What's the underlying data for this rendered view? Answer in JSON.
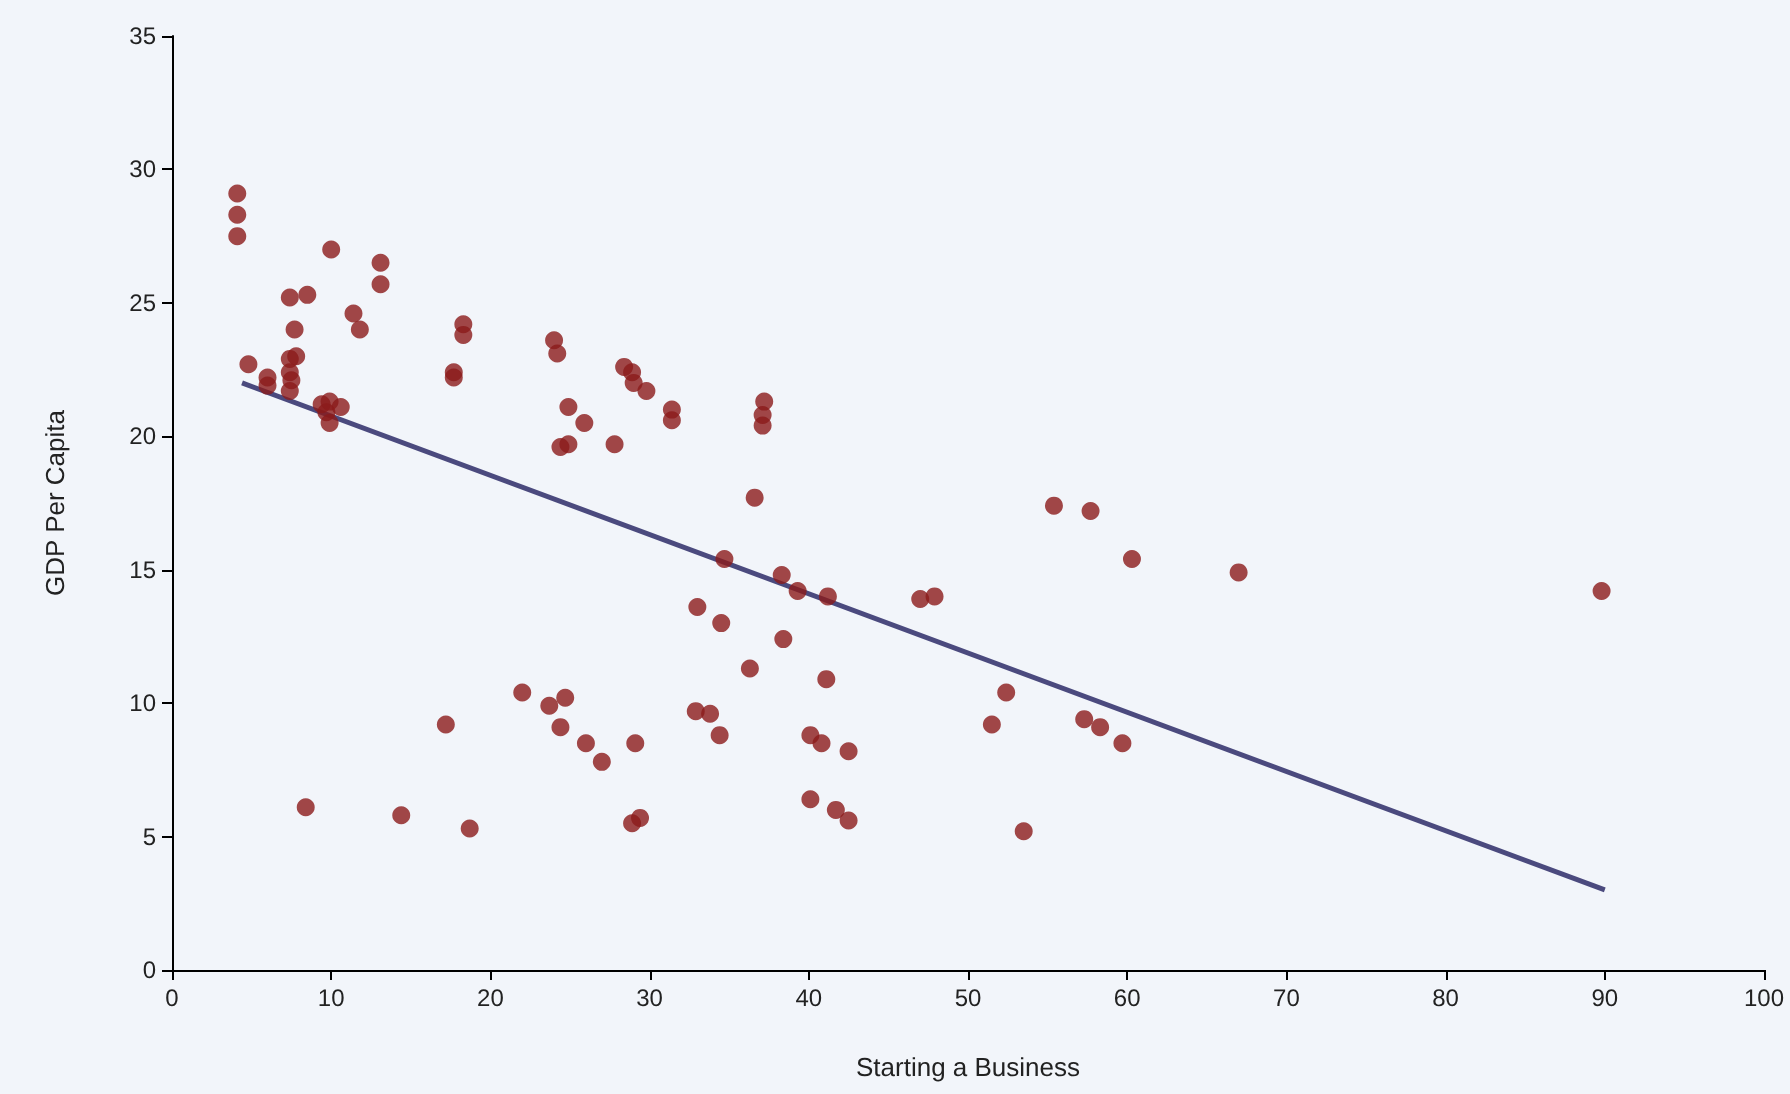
{
  "chart_data": {
    "type": "scatter",
    "xlabel": "Starting a Business",
    "ylabel": "GDP Per Capita",
    "xlim": [
      0,
      100
    ],
    "xticks": [
      0,
      10,
      20,
      30,
      40,
      50,
      60,
      70,
      80,
      90,
      100
    ],
    "ylim": [
      0,
      35
    ],
    "yticks": [
      0,
      5,
      10,
      15,
      20,
      25,
      30,
      35
    ],
    "grid": false,
    "marker": "circle",
    "series": [
      {
        "color": "#8b1a1a",
        "x": [
          4.1,
          4.1,
          4.1,
          4.8,
          6.0,
          6.0,
          7.4,
          7.4,
          7.5,
          7.4,
          7.4,
          7.7,
          7.8,
          8.5,
          9.4,
          9.7,
          9.9,
          9.9,
          10.6,
          10.0,
          11.4,
          11.8,
          13.1,
          13.1,
          8.4,
          14.4,
          18.3,
          18.3,
          17.7,
          17.7,
          17.2,
          18.7,
          22.0,
          23.7,
          24.4,
          24.7,
          24.0,
          24.2,
          24.4,
          24.9,
          24.9,
          25.9,
          26.0,
          27.0,
          27.8,
          28.4,
          28.9,
          29.0,
          29.8,
          31.4,
          31.4,
          29.1,
          28.9,
          29.4,
          33.0,
          32.9,
          33.8,
          34.4,
          34.5,
          34.7,
          36.6,
          37.2,
          37.1,
          37.1,
          36.3,
          38.3,
          38.4,
          39.3,
          41.2,
          40.1,
          40.8,
          41.1,
          40.1,
          41.7,
          42.5,
          42.5,
          47.0,
          47.9,
          51.5,
          52.4,
          53.5,
          55.4,
          57.7,
          57.3,
          58.3,
          59.7,
          60.3,
          67.0,
          89.8
        ],
        "values": [
          29.1,
          28.3,
          27.5,
          22.7,
          22.2,
          21.9,
          22.9,
          22.4,
          22.1,
          21.7,
          25.2,
          24.0,
          23.0,
          25.3,
          21.2,
          20.9,
          21.3,
          20.5,
          21.1,
          27.0,
          24.6,
          24.0,
          26.5,
          25.7,
          6.1,
          5.8,
          24.2,
          23.8,
          22.4,
          22.2,
          9.2,
          5.3,
          10.4,
          9.9,
          9.1,
          10.2,
          23.6,
          23.1,
          19.6,
          19.7,
          21.1,
          20.5,
          8.5,
          7.8,
          19.7,
          22.6,
          22.4,
          22.0,
          21.7,
          21.0,
          20.6,
          8.5,
          5.5,
          5.7,
          13.6,
          9.7,
          9.6,
          8.8,
          13.0,
          15.4,
          17.7,
          21.3,
          20.8,
          20.4,
          11.3,
          14.8,
          12.4,
          14.2,
          14.0,
          8.8,
          8.5,
          10.9,
          6.4,
          6.0,
          8.2,
          5.6,
          13.9,
          14.0,
          9.2,
          10.4,
          5.2,
          17.4,
          17.2,
          9.4,
          9.1,
          8.5,
          15.4,
          14.9,
          14.2
        ]
      },
      {
        "type": "line",
        "color": "#4b4a7e",
        "x": [
          4.4,
          90.0
        ],
        "values": [
          22.0,
          3.0
        ],
        "marker": "none",
        "line_style": "solid"
      }
    ]
  }
}
